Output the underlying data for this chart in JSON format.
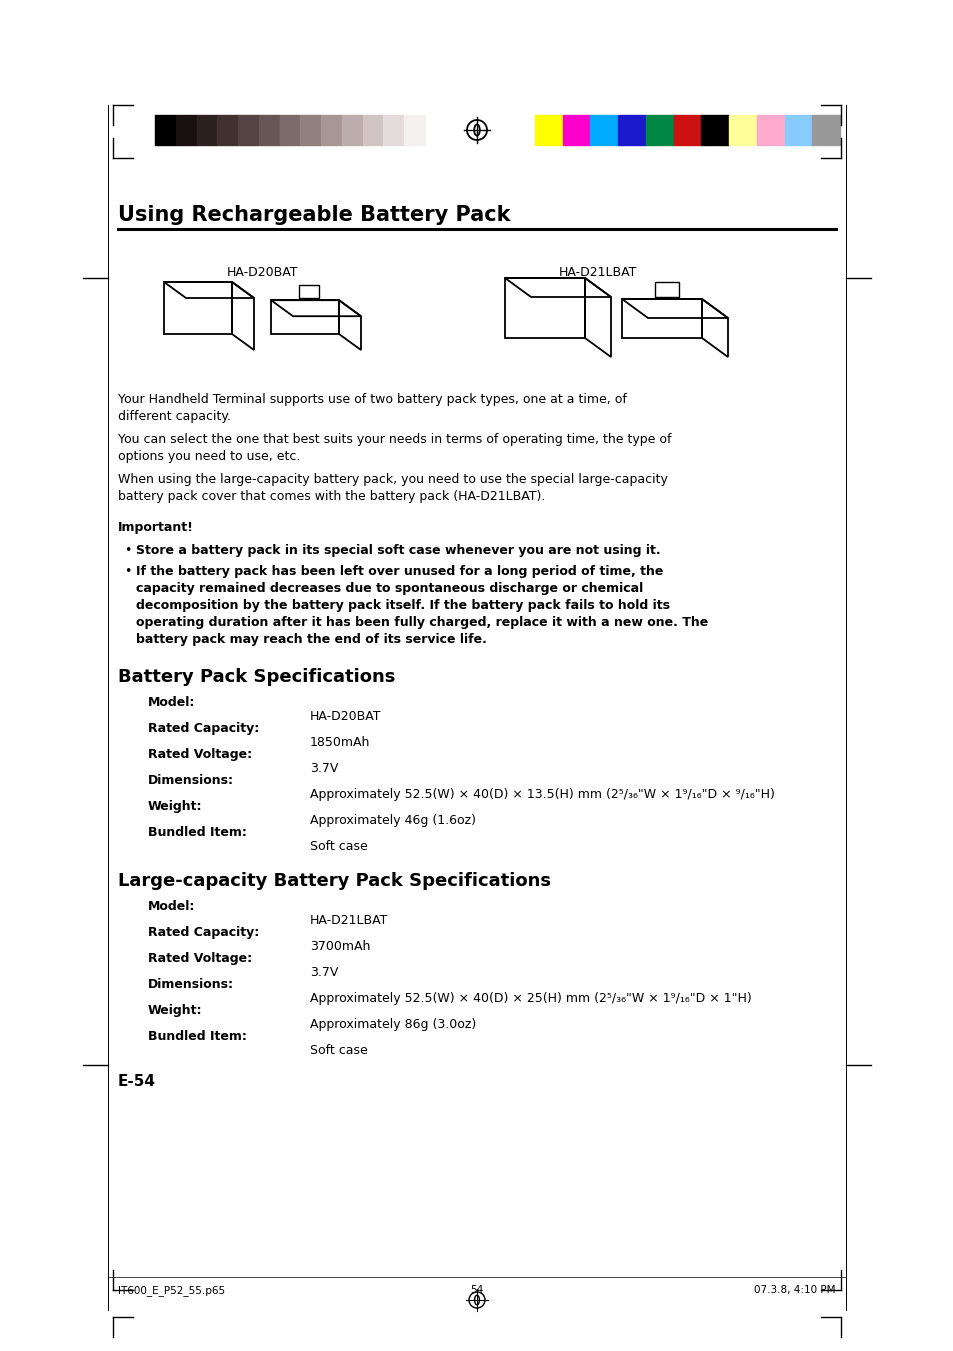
{
  "bg_color": "#ffffff",
  "title": "Using Rechargeable Battery Pack",
  "title_fontsize": 15,
  "color_bar_left_colors": [
    "#000000",
    "#191111",
    "#2d2020",
    "#413030",
    "#554242",
    "#685555",
    "#7d6a6a",
    "#927f7f",
    "#a89595",
    "#bcacac",
    "#d0c4c4",
    "#e4dcdc",
    "#f5f0f0"
  ],
  "color_bar_right_colors": [
    "#ffff00",
    "#ff00cc",
    "#00aaff",
    "#1a1acc",
    "#008844",
    "#cc1111",
    "#000000",
    "#ffff99",
    "#ffaacc",
    "#88ccff",
    "#999999"
  ],
  "label_left": "HA-D20BAT",
  "label_right": "HA-D21LBAT",
  "para1a": "Your Handheld Terminal supports use of two battery pack types, one at a time, of",
  "para1b": "different capacity.",
  "para2a": "You can select the one that best suits your needs in terms of operating time, the type of",
  "para2b": "options you need to use, etc.",
  "para3a": "When using the large-capacity battery pack, you need to use the special large-capacity",
  "para3b": "battery pack cover that comes with the battery pack (HA-D21LBAT).",
  "important_label": "Important!",
  "bullet1": "Store a battery pack in its special soft case whenever you are not using it.",
  "bullet2_lines": [
    "If the battery pack has been left over unused for a long period of time, the",
    "capacity remained decreases due to spontaneous discharge or chemical",
    "decomposition by the battery pack itself. If the battery pack fails to hold its",
    "operating duration after it has been fully charged, replace it with a new one. The",
    "battery pack may reach the end of its service life."
  ],
  "section2_title": "Battery Pack Specifications",
  "section2_labels": [
    "Model:",
    "Rated Capacity:",
    "Rated Voltage:",
    "Dimensions:",
    "Weight:",
    "Bundled Item:"
  ],
  "section2_values": [
    "HA-D20BAT",
    "1850mAh",
    "3.7V",
    "Approximately 52.5(W) × 40(D) × 13.5(H) mm (2⁵/₃₆\"W × 1⁹/₁₆\"D × ⁹/₁₆\"H)",
    "Approximately 46g (1.6oz)",
    "Soft case"
  ],
  "section3_title": "Large-capacity Battery Pack Specifications",
  "section3_labels": [
    "Model:",
    "Rated Capacity:",
    "Rated Voltage:",
    "Dimensions:",
    "Weight:",
    "Bundled Item:"
  ],
  "section3_values": [
    "HA-D21LBAT",
    "3700mAh",
    "3.7V",
    "Approximately 52.5(W) × 40(D) × 25(H) mm (2⁵/₃₆\"W × 1⁹/₁₆\"D × 1\"H)",
    "Approximately 86g (3.0oz)",
    "Soft case"
  ],
  "footer_left": "IT600_E_P52_55.p65",
  "footer_center": "54",
  "footer_right": "07.3.8, 4:10 PM",
  "page_label": "E-54"
}
